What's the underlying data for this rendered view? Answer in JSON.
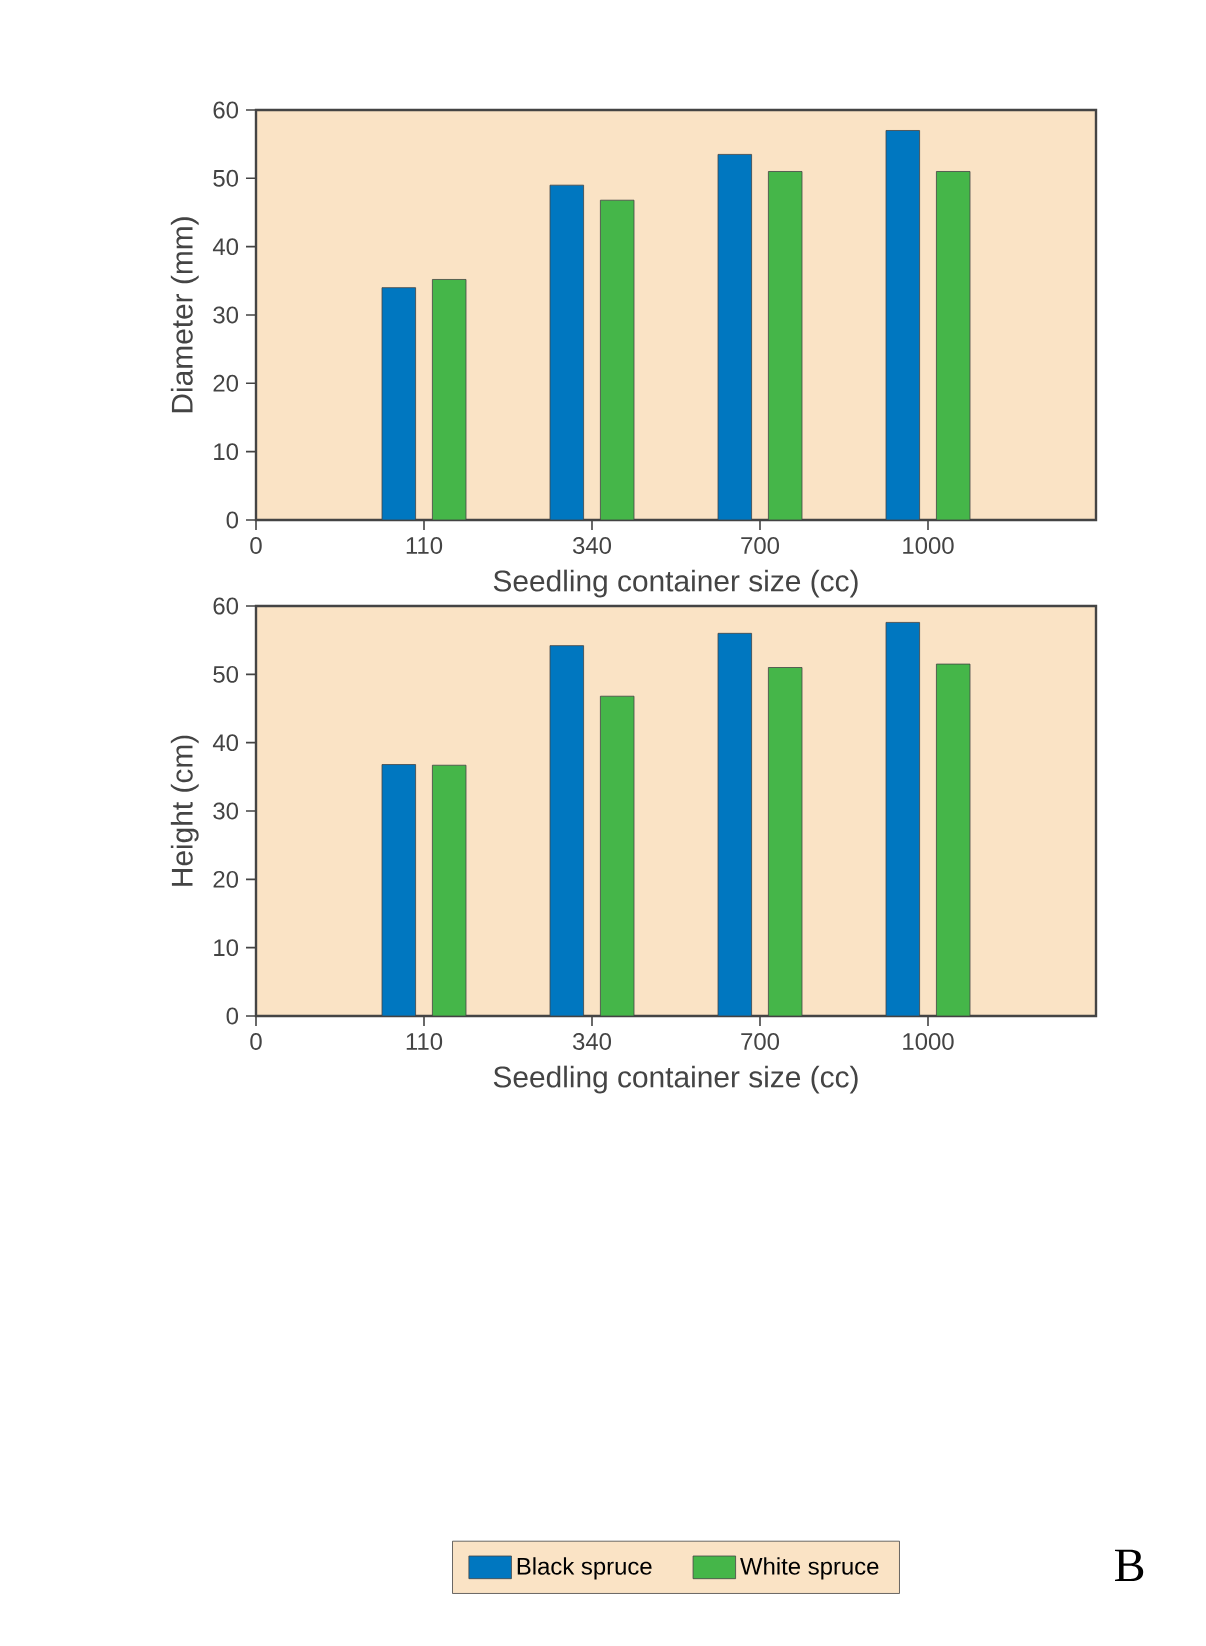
{
  "chart_data": [
    {
      "type": "bar",
      "ylabel": "Diameter (mm)",
      "xlabel": "Seedling container size (cc)",
      "categories": [
        "0",
        "110",
        "340",
        "700",
        "1000"
      ],
      "ylim": [
        0,
        60
      ],
      "yticks": [
        0,
        10,
        20,
        30,
        40,
        50,
        60
      ],
      "legend": false,
      "series": [
        {
          "color": "#0077c0",
          "values": [
            null,
            34,
            49,
            53.5,
            57
          ]
        },
        {
          "color": "#45b649",
          "values": [
            null,
            35.2,
            46.8,
            51,
            51
          ]
        }
      ]
    },
    {
      "type": "bar",
      "ylabel": "Height (cm)",
      "xlabel": "Seedling container size (cc)",
      "categories": [
        "0",
        "110",
        "340",
        "700",
        "1000"
      ],
      "ylim": [
        0,
        60
      ],
      "yticks": [
        0,
        10,
        20,
        30,
        40,
        50,
        60
      ],
      "legend": "bottom",
      "annotations": [
        "B"
      ],
      "series": [
        {
          "name": "Black spruce",
          "color": "#0077c0",
          "values": [
            null,
            36.8,
            54.2,
            56,
            57.6
          ]
        },
        {
          "name": "White spruce",
          "color": "#45b649",
          "values": [
            null,
            36.7,
            46.8,
            51,
            51.5
          ]
        }
      ]
    }
  ]
}
